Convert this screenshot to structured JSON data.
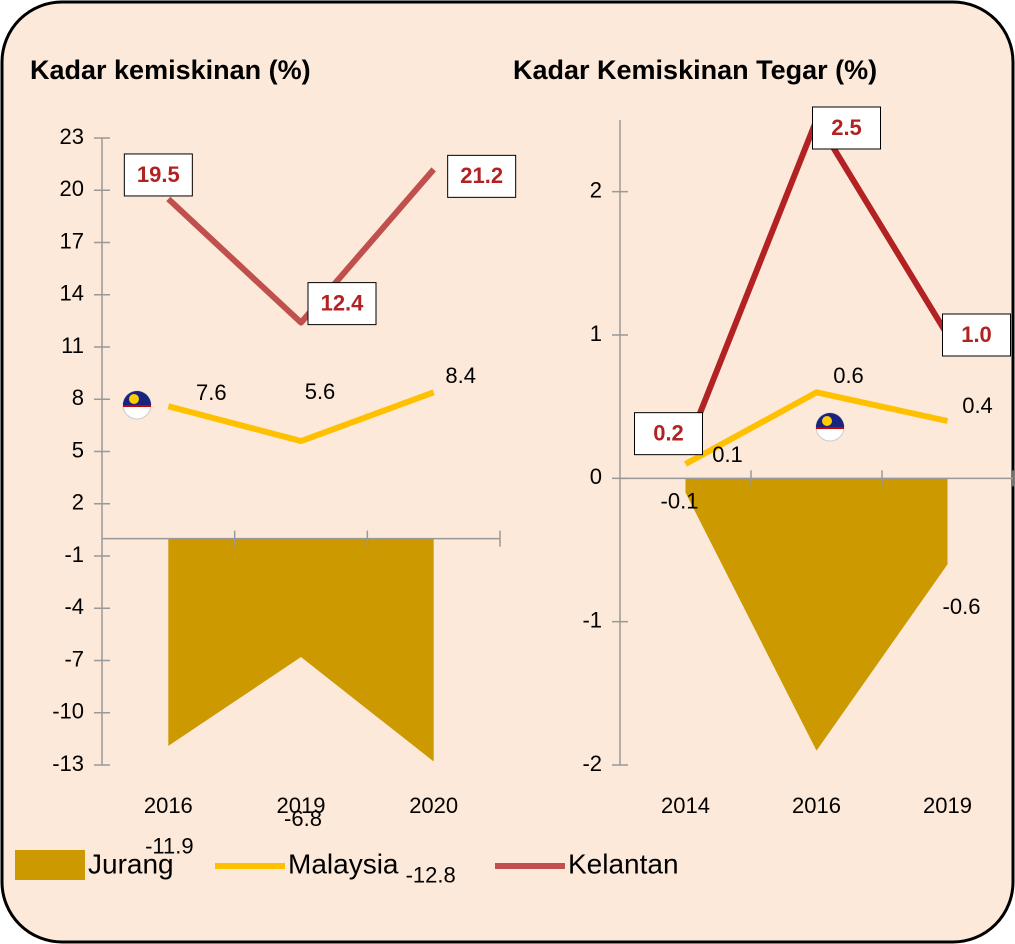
{
  "chart_data": [
    {
      "type": "line",
      "title": "Kadar kemiskinan (%)",
      "categories": [
        "2016",
        "2019",
        "2020"
      ],
      "ylim": [
        -13,
        23
      ],
      "yticks": [
        -13,
        -10,
        -7,
        -4,
        -1,
        2,
        5,
        8,
        11,
        14,
        17,
        20,
        23
      ],
      "series": [
        {
          "name": "Jurang",
          "type": "area",
          "color": "#cc9900",
          "values": [
            -11.9,
            -6.8,
            -12.8
          ]
        },
        {
          "name": "Malaysia",
          "color": "#ffc000",
          "values": [
            7.6,
            5.6,
            8.4
          ]
        },
        {
          "name": "Kelantan",
          "color": "#c0504d",
          "values": [
            19.5,
            12.4,
            21.2
          ]
        }
      ]
    },
    {
      "type": "line",
      "title": "Kadar Kemiskinan Tegar (%)",
      "categories": [
        "2014",
        "2016",
        "2019"
      ],
      "ylim": [
        -2,
        2.5
      ],
      "yticks": [
        -2,
        -1,
        0,
        1,
        2
      ],
      "series": [
        {
          "name": "Jurang",
          "type": "area",
          "color": "#cc9900",
          "values": [
            -0.1,
            -1.9,
            -0.6
          ]
        },
        {
          "name": "Malaysia",
          "color": "#ffc000",
          "values": [
            0.1,
            0.6,
            0.4
          ]
        },
        {
          "name": "Kelantan",
          "color": "#b22222",
          "values": [
            0.2,
            2.5,
            1.0
          ],
          "value_labels": [
            "0.2",
            "2.5",
            "1.0"
          ]
        }
      ]
    }
  ]
}
